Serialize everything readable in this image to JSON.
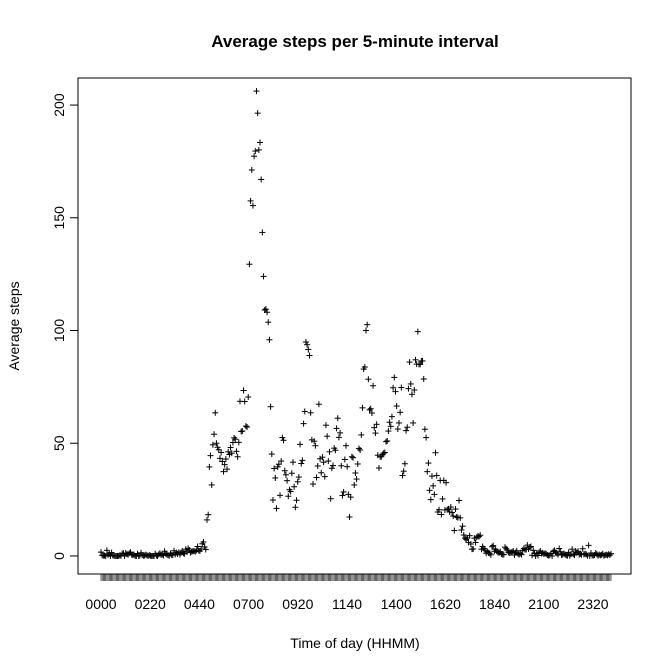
{
  "chart_data": {
    "type": "scatter",
    "title": "Average steps per 5-minute interval",
    "xlabel": "Time of day (HHMM)",
    "ylabel": "Average steps",
    "x_tick_labels": [
      "0000",
      "0220",
      "0440",
      "0700",
      "0920",
      "1140",
      "1400",
      "1620",
      "1840",
      "2100",
      "2320"
    ],
    "y_ticks": [
      0,
      50,
      100,
      150,
      200
    ],
    "ylim": [
      -8,
      212
    ],
    "point_symbol": "+",
    "grid": false,
    "legend": "none",
    "interval_minutes": 5,
    "series": [
      {
        "name": "",
        "values": [
          1.7,
          0.3,
          0.1,
          0.2,
          0.0,
          2.5,
          0.5,
          0.9,
          0.0,
          1.5,
          0.3,
          0.1,
          0.0,
          0.0,
          0.0,
          0.0,
          0.3,
          0.1,
          1.1,
          1.2,
          0.0,
          1.3,
          0.8,
          0.6,
          1.2,
          1.7,
          0.6,
          0.4,
          0.6,
          0.0,
          0.0,
          1.0,
          0.0,
          0.2,
          1.4,
          0.4,
          0.1,
          0.2,
          0.6,
          0.3,
          0.0,
          0.4,
          0.1,
          0.0,
          0.0,
          0.0,
          1.0,
          0.2,
          0.0,
          0.7,
          1.2,
          0.5,
          0.6,
          0.2,
          2.1,
          1.0,
          0.6,
          0.3,
          0.2,
          1.1,
          0.4,
          0.4,
          2.3,
          0.7,
          1.5,
          0.9,
          1.6,
          0.6,
          1.5,
          2.2,
          1.2,
          1.0,
          3.0,
          1.8,
          3.4,
          2.6,
          1.5,
          1.9,
          2.1,
          2.2,
          1.9,
          2.5,
          4.2,
          2.4,
          2.2,
          3.1,
          5.4,
          6.2,
          4.0,
          2.9,
          16.0,
          18.3,
          39.5,
          44.5,
          31.5,
          49.3,
          54.0,
          63.5,
          50.0,
          48.2,
          47.1,
          43.3,
          45.9,
          41.9,
          37.4,
          40.5,
          43.0,
          38.5,
          46.2,
          45.0,
          48.1,
          45.6,
          50.3,
          52.4,
          51.8,
          46.4,
          44.0,
          50.4,
          68.6,
          55.2,
          55.4,
          73.4,
          68.5,
          57.6,
          57.2,
          70.5,
          129.4,
          157.5,
          171.2,
          155.4,
          177.3,
          179.6,
          206.2,
          196.4,
          180.1,
          183.4,
          167.0,
          143.5,
          124.0,
          109.1,
          109.5,
          108.1,
          103.7,
          95.9,
          66.2,
          45.2,
          24.8,
          38.8,
          34.6,
          21.1,
          39.5,
          40.7,
          26.9,
          42.1,
          52.5,
          51.3,
          37.8,
          36.0,
          33.4,
          26.5,
          29.4,
          28.6,
          36.7,
          41.6,
          30.7,
          21.6,
          24.7,
          32.9,
          35.0,
          49.5,
          41.0,
          42.4,
          58.7,
          64.1,
          94.9,
          93.7,
          91.6,
          88.9,
          63.5,
          51.5,
          31.9,
          50.9,
          48.9,
          34.8,
          39.9,
          67.3,
          43.1,
          36.9,
          43.8,
          41.6,
          35.2,
          58.0,
          53.1,
          42.1,
          46.2,
          25.4,
          38.9,
          40.1,
          47.8,
          46.9,
          56.6,
          61.1,
          52.6,
          54.6,
          40.0,
          26.8,
          28.4,
          42.8,
          48.9,
          39.6,
          27.3,
          17.3,
          26.1,
          44.0,
          43.6,
          31.5,
          36.8,
          34.1,
          40.8,
          47.7,
          47.0,
          53.7,
          65.7,
          82.9,
          83.8,
          100.0,
          102.6,
          78.4,
          64.8,
          65.3,
          63.4,
          75.5,
          56.9,
          54.5,
          58.4,
          44.7,
          39.0,
          44.0,
          44.0,
          45.0,
          45.6,
          45.9,
          50.7,
          51.0,
          55.4,
          59.3,
          57.5,
          61.8,
          74.6,
          79.2,
          72.9,
          66.5,
          56.3,
          59.0,
          63.7,
          74.7,
          35.7,
          37.6,
          40.9,
          55.6,
          57.1,
          74.2,
          86.0,
          76.3,
          71.7,
          59.0,
          73.6,
          87.0,
          85.1,
          99.5,
          85.0,
          85.0,
          86.5,
          86.5,
          78.5,
          56.2,
          52.5,
          37.4,
          41.2,
          29.1,
          25.0,
          35.4,
          31.1,
          27.3,
          45.8,
          35.7,
          19.5,
          20.5,
          33.5,
          18.4,
          25.3,
          33.5,
          20.4,
          32.5,
          20.6,
          20.9,
          19.5,
          21.7,
          19.3,
          17.7,
          11.3,
          20.8,
          17.3,
          17.0,
          24.6,
          16.9,
          11.5,
          13.2,
          9.3,
          7.9,
          7.4,
          8.0,
          6.0,
          9.0,
          5.3,
          3.0,
          3.1,
          7.9,
          6.0,
          8.3,
          8.8,
          8.6,
          9.2,
          3.0,
          4.2,
          3.3,
          2.6,
          1.2,
          2.0,
          1.4,
          1.2,
          0.5,
          4.1,
          4.6,
          2.1,
          3.0,
          2.1,
          1.6,
          1.4,
          1.9,
          0.9,
          0.6,
          0.6,
          3.9,
          3.2,
          2.6,
          1.6,
          1.3,
          1.5,
          1.8,
          2.2,
          0.4,
          1.5,
          2.3,
          1.0,
          0.6,
          1.1,
          0.6,
          2.5,
          3.3,
          2.8,
          2.9,
          4.8,
          3.1,
          3.9,
          4.2,
          0.3,
          2.5,
          1.1,
          0.0,
          1.3,
          0.2,
          1.6,
          2.2,
          1.1,
          1.4,
          0.8,
          1.2,
          0.9,
          0.4,
          0.2,
          0.3,
          1.1,
          0.0,
          2.0,
          2.5,
          1.5,
          1.2,
          0.6,
          3.3,
          1.9,
          0.4,
          0.6,
          1.1,
          0.6,
          0.3,
          0.1,
          1.6,
          0.1,
          0.8,
          3.0,
          0.8,
          0.4,
          2.2,
          1.5,
          2.1,
          0.6,
          0.9,
          0.6,
          3.2,
          0.7,
          1.0,
          0.7,
          0.1,
          4.7,
          0.0,
          1.3,
          0.3,
          0.2,
          0.4,
          1.3,
          0.8,
          0.1,
          0.6,
          0.3,
          0.5,
          1.0,
          0.1,
          0.4,
          0.6,
          0.3,
          0.8,
          0.4,
          1.0
        ]
      }
    ]
  }
}
